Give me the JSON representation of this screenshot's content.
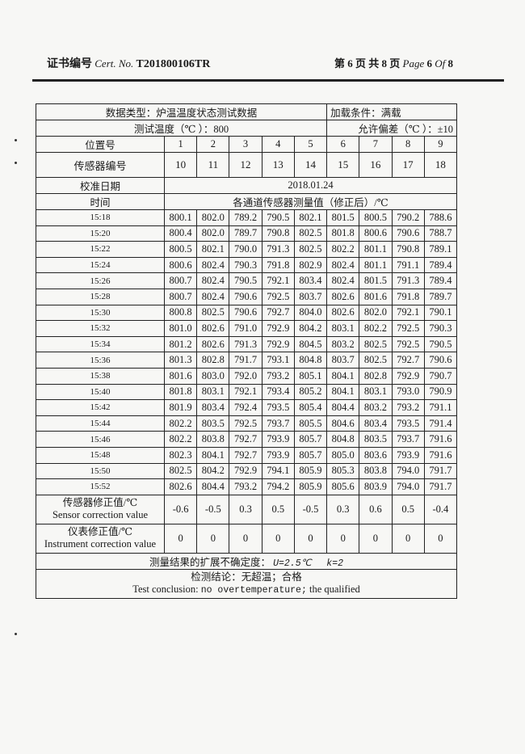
{
  "header": {
    "cert_label_cn": "证书编号",
    "cert_label_en": "Cert. No.",
    "cert_no": "T201800106TR",
    "page_cn_prefix": "第",
    "page_num": "6",
    "page_cn_mid": "页 共",
    "page_total": "8",
    "page_cn_suffix": "页",
    "page_en": "Page",
    "page_en_num": "6",
    "page_en_of": "Of",
    "page_en_total": "8"
  },
  "table": {
    "data_type": "数据类型：炉温温度状态测试数据",
    "load_condition": "加载条件：满载",
    "test_temp": "测试温度（℃ ）：800",
    "tolerance": "允许偏差（℃ ）：±10",
    "position_label": "位置号",
    "positions": [
      "1",
      "2",
      "3",
      "4",
      "5",
      "6",
      "7",
      "8",
      "9"
    ],
    "sensor_label": "传感器编号",
    "sensors": [
      "10",
      "11",
      "12",
      "13",
      "14",
      "15",
      "16",
      "17",
      "18"
    ],
    "cal_date_label": "校准日期",
    "cal_date": "2018.01.24",
    "time_label": "时间",
    "values_label": "各通道传感器测量值（修正后）/℃",
    "rows": [
      {
        "time": "15:18",
        "v": [
          "800.1",
          "802.0",
          "789.2",
          "790.5",
          "802.1",
          "801.5",
          "800.5",
          "790.2",
          "788.6"
        ]
      },
      {
        "time": "15:20",
        "v": [
          "800.4",
          "802.0",
          "789.7",
          "790.8",
          "802.5",
          "801.8",
          "800.6",
          "790.6",
          "788.7"
        ]
      },
      {
        "time": "15:22",
        "v": [
          "800.5",
          "802.1",
          "790.0",
          "791.3",
          "802.5",
          "802.2",
          "801.1",
          "790.8",
          "789.1"
        ]
      },
      {
        "time": "15:24",
        "v": [
          "800.6",
          "802.4",
          "790.3",
          "791.8",
          "802.9",
          "802.4",
          "801.1",
          "791.1",
          "789.4"
        ]
      },
      {
        "time": "15:26",
        "v": [
          "800.7",
          "802.4",
          "790.5",
          "792.1",
          "803.4",
          "802.4",
          "801.5",
          "791.3",
          "789.4"
        ]
      },
      {
        "time": "15:28",
        "v": [
          "800.7",
          "802.4",
          "790.6",
          "792.5",
          "803.7",
          "802.6",
          "801.6",
          "791.8",
          "789.7"
        ]
      },
      {
        "time": "15:30",
        "v": [
          "800.8",
          "802.5",
          "790.6",
          "792.7",
          "804.0",
          "802.6",
          "802.0",
          "792.1",
          "790.1"
        ]
      },
      {
        "time": "15:32",
        "v": [
          "801.0",
          "802.6",
          "791.0",
          "792.9",
          "804.2",
          "803.1",
          "802.2",
          "792.5",
          "790.3"
        ]
      },
      {
        "time": "15:34",
        "v": [
          "801.2",
          "802.6",
          "791.3",
          "792.9",
          "804.5",
          "803.2",
          "802.5",
          "792.5",
          "790.5"
        ]
      },
      {
        "time": "15:36",
        "v": [
          "801.3",
          "802.8",
          "791.7",
          "793.1",
          "804.8",
          "803.7",
          "802.5",
          "792.7",
          "790.6"
        ]
      },
      {
        "time": "15:38",
        "v": [
          "801.6",
          "803.0",
          "792.0",
          "793.2",
          "805.1",
          "804.1",
          "802.8",
          "792.9",
          "790.7"
        ]
      },
      {
        "time": "15:40",
        "v": [
          "801.8",
          "803.1",
          "792.1",
          "793.4",
          "805.2",
          "804.1",
          "803.1",
          "793.0",
          "790.9"
        ]
      },
      {
        "time": "15:42",
        "v": [
          "801.9",
          "803.4",
          "792.4",
          "793.5",
          "805.4",
          "804.4",
          "803.2",
          "793.2",
          "791.1"
        ]
      },
      {
        "time": "15:44",
        "v": [
          "802.2",
          "803.5",
          "792.5",
          "793.7",
          "805.5",
          "804.6",
          "803.4",
          "793.5",
          "791.4"
        ]
      },
      {
        "time": "15:46",
        "v": [
          "802.2",
          "803.8",
          "792.7",
          "793.9",
          "805.7",
          "804.8",
          "803.5",
          "793.7",
          "791.6"
        ]
      },
      {
        "time": "15:48",
        "v": [
          "802.3",
          "804.1",
          "792.7",
          "793.9",
          "805.7",
          "805.0",
          "803.6",
          "793.9",
          "791.6"
        ]
      },
      {
        "time": "15:50",
        "v": [
          "802.5",
          "804.2",
          "792.9",
          "794.1",
          "805.9",
          "805.3",
          "803.8",
          "794.0",
          "791.7"
        ]
      },
      {
        "time": "15:52",
        "v": [
          "802.6",
          "804.4",
          "793.2",
          "794.2",
          "805.9",
          "805.6",
          "803.9",
          "794.0",
          "791.7"
        ]
      }
    ],
    "sensor_corr_cn": "传感器修正值/℃",
    "sensor_corr_en": "Sensor correction value",
    "sensor_corr": [
      "-0.6",
      "-0.5",
      "0.3",
      "0.5",
      "-0.5",
      "0.3",
      "0.6",
      "0.5",
      "-0.4"
    ],
    "instr_corr_cn": "仪表修正值/℃",
    "instr_corr_en": "Instrument correction value",
    "instr_corr": [
      "0",
      "0",
      "0",
      "0",
      "0",
      "0",
      "0",
      "0",
      "0"
    ],
    "uncertainty_label": "测量结果的扩展不确定度：",
    "uncertainty_u": "U=2.5℃",
    "uncertainty_k": "k=2",
    "conclusion_cn": "检测结论：无超温；合格",
    "conclusion_en_a": "Test conclusion:",
    "conclusion_en_b": "no overtemperature;",
    "conclusion_en_c": "the qualified"
  }
}
